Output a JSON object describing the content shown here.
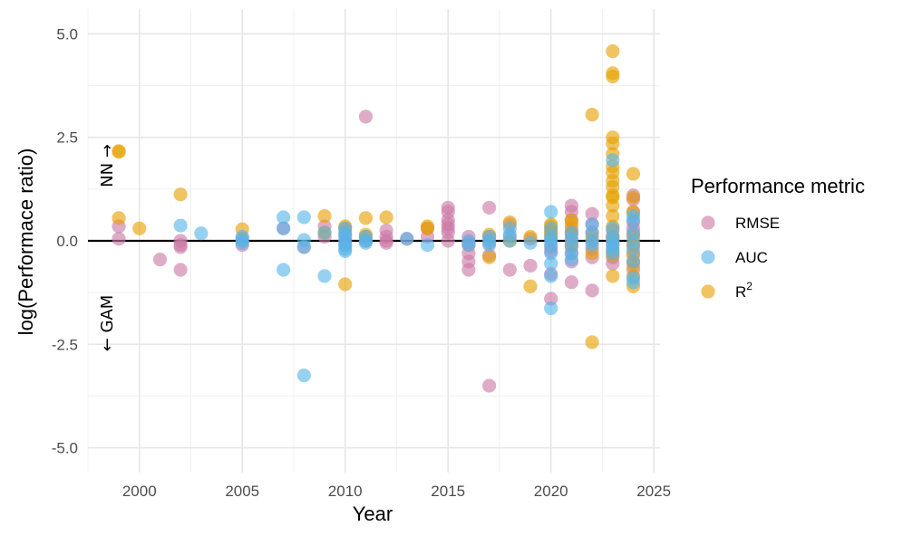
{
  "chart_data": {
    "type": "scatter",
    "xlabel": "Year",
    "ylabel": "log(Performace ratio)",
    "xlim": [
      1997.5,
      2025.3
    ],
    "ylim": [
      -5.6,
      5.6
    ],
    "x_ticks": [
      2000,
      2005,
      2010,
      2015,
      2020,
      2025
    ],
    "y_ticks": [
      5.0,
      2.5,
      0.0,
      -2.5,
      -5.0
    ],
    "y_tick_labels": [
      "5.0",
      "2.5",
      "0.0",
      "-2.5",
      "-5.0"
    ],
    "x_minor_ticks": [
      1997.5,
      2002.5,
      2007.5,
      2012.5,
      2017.5,
      2022.5
    ],
    "y_minor_ticks": [
      3.75,
      1.25,
      -1.25,
      -3.75
    ],
    "grid": true,
    "reference_line_y": 0,
    "annotations": {
      "upper": "NN →",
      "lower": "← GAM"
    },
    "legend": {
      "title": "Performance metric",
      "position": "right",
      "entries": [
        {
          "label": "RMSE",
          "superscript": "",
          "color": "#CC79A7"
        },
        {
          "label": "AUC",
          "superscript": "",
          "color": "#56B4E9"
        },
        {
          "label": "R",
          "superscript": "2",
          "color": "#E69F00"
        }
      ]
    },
    "series": [
      {
        "name": "RMSE",
        "color": "#CC79A7",
        "points": [
          [
            1999,
            0.35
          ],
          [
            1999,
            0.05
          ],
          [
            2001,
            -0.45
          ],
          [
            2002,
            -0.1
          ],
          [
            2002,
            -0.15
          ],
          [
            2002,
            -0.7
          ],
          [
            2002,
            0.0
          ],
          [
            2005,
            -0.1
          ],
          [
            2005,
            0.05
          ],
          [
            2007,
            0.3
          ],
          [
            2008,
            -0.15
          ],
          [
            2009,
            0.35
          ],
          [
            2009,
            0.1
          ],
          [
            2010,
            0.3
          ],
          [
            2010,
            0.15
          ],
          [
            2010,
            -0.1
          ],
          [
            2010,
            0.0
          ],
          [
            2011,
            3.0
          ],
          [
            2011,
            0.1
          ],
          [
            2011,
            0.0
          ],
          [
            2012,
            0.25
          ],
          [
            2012,
            0.1
          ],
          [
            2012,
            0.0
          ],
          [
            2012,
            -0.05
          ],
          [
            2013,
            0.05
          ],
          [
            2014,
            0.3
          ],
          [
            2014,
            0.1
          ],
          [
            2015,
            0.8
          ],
          [
            2015,
            0.7
          ],
          [
            2015,
            0.5
          ],
          [
            2015,
            0.4
          ],
          [
            2015,
            0.3
          ],
          [
            2015,
            0.2
          ],
          [
            2015,
            0.0
          ],
          [
            2016,
            0.1
          ],
          [
            2016,
            -0.05
          ],
          [
            2016,
            -0.1
          ],
          [
            2016,
            -0.3
          ],
          [
            2016,
            -0.5
          ],
          [
            2016,
            -0.7
          ],
          [
            2017,
            0.8
          ],
          [
            2017,
            0.1
          ],
          [
            2017,
            -0.05
          ],
          [
            2017,
            -0.35
          ],
          [
            2017,
            -3.5
          ],
          [
            2018,
            0.4
          ],
          [
            2018,
            0.1
          ],
          [
            2018,
            -0.7
          ],
          [
            2019,
            0.05
          ],
          [
            2019,
            -0.6
          ],
          [
            2020,
            0.2
          ],
          [
            2020,
            0.05
          ],
          [
            2020,
            -0.15
          ],
          [
            2020,
            -0.25
          ],
          [
            2020,
            -0.8
          ],
          [
            2020,
            -1.4
          ],
          [
            2021,
            0.85
          ],
          [
            2021,
            0.7
          ],
          [
            2021,
            0.5
          ],
          [
            2021,
            0.3
          ],
          [
            2021,
            0.15
          ],
          [
            2021,
            0.0
          ],
          [
            2021,
            -0.15
          ],
          [
            2021,
            -0.3
          ],
          [
            2021,
            -0.5
          ],
          [
            2021,
            -1.0
          ],
          [
            2022,
            0.65
          ],
          [
            2022,
            0.4
          ],
          [
            2022,
            0.2
          ],
          [
            2022,
            0.0
          ],
          [
            2022,
            -0.2
          ],
          [
            2022,
            -0.4
          ],
          [
            2022,
            -1.2
          ],
          [
            2023,
            0.25
          ],
          [
            2023,
            0.1
          ],
          [
            2023,
            0.0
          ],
          [
            2023,
            -0.1
          ],
          [
            2023,
            -0.25
          ],
          [
            2023,
            -0.4
          ],
          [
            2023,
            -0.55
          ],
          [
            2024,
            1.1
          ],
          [
            2024,
            1.0
          ],
          [
            2024,
            0.7
          ],
          [
            2024,
            0.45
          ],
          [
            2024,
            0.3
          ],
          [
            2024,
            0.15
          ],
          [
            2024,
            -0.1
          ],
          [
            2024,
            -0.3
          ],
          [
            2024,
            -0.5
          ],
          [
            2024,
            -0.7
          ]
        ]
      },
      {
        "name": "AUC",
        "color": "#56B4E9",
        "points": [
          [
            2002,
            0.37
          ],
          [
            2003,
            0.18
          ],
          [
            2005,
            0.1
          ],
          [
            2005,
            0.0
          ],
          [
            2005,
            -0.05
          ],
          [
            2007,
            0.57
          ],
          [
            2007,
            0.3
          ],
          [
            2007,
            -0.7
          ],
          [
            2008,
            0.57
          ],
          [
            2008,
            0.02
          ],
          [
            2008,
            -0.15
          ],
          [
            2008,
            -3.25
          ],
          [
            2009,
            -0.85
          ],
          [
            2009,
            0.2
          ],
          [
            2010,
            0.3
          ],
          [
            2010,
            0.2
          ],
          [
            2010,
            0.1
          ],
          [
            2010,
            0.0
          ],
          [
            2010,
            -0.1
          ],
          [
            2010,
            -0.2
          ],
          [
            2010,
            -0.25
          ],
          [
            2011,
            0.1
          ],
          [
            2011,
            0.0
          ],
          [
            2011,
            -0.05
          ],
          [
            2013,
            0.05
          ],
          [
            2014,
            -0.1
          ],
          [
            2016,
            0.0
          ],
          [
            2016,
            -0.1
          ],
          [
            2017,
            0.1
          ],
          [
            2017,
            0.0
          ],
          [
            2017,
            -0.1
          ],
          [
            2018,
            0.3
          ],
          [
            2018,
            0.15
          ],
          [
            2018,
            0.0
          ],
          [
            2019,
            -0.05
          ],
          [
            2020,
            0.7
          ],
          [
            2020,
            0.3
          ],
          [
            2020,
            0.1
          ],
          [
            2020,
            0.0
          ],
          [
            2020,
            -0.1
          ],
          [
            2020,
            -0.3
          ],
          [
            2020,
            -0.55
          ],
          [
            2020,
            -0.85
          ],
          [
            2020,
            -1.63
          ],
          [
            2021,
            0.2
          ],
          [
            2021,
            0.05
          ],
          [
            2021,
            -0.1
          ],
          [
            2021,
            -0.3
          ],
          [
            2021,
            -0.45
          ],
          [
            2022,
            0.4
          ],
          [
            2022,
            0.2
          ],
          [
            2022,
            0.0
          ],
          [
            2022,
            -0.1
          ],
          [
            2023,
            1.95
          ],
          [
            2023,
            0.3
          ],
          [
            2023,
            0.1
          ],
          [
            2023,
            0.0
          ],
          [
            2023,
            -0.1
          ],
          [
            2023,
            -0.2
          ],
          [
            2023,
            -0.3
          ],
          [
            2024,
            0.6
          ],
          [
            2024,
            0.5
          ],
          [
            2024,
            0.2
          ],
          [
            2024,
            0.0
          ],
          [
            2024,
            -0.2
          ],
          [
            2024,
            -0.5
          ],
          [
            2024,
            -0.9
          ],
          [
            2024,
            -1.0
          ]
        ]
      },
      {
        "name": "R",
        "color": "#E69F00",
        "points": [
          [
            1999,
            2.17
          ],
          [
            1999,
            2.15
          ],
          [
            1999,
            0.55
          ],
          [
            2000,
            0.3
          ],
          [
            2002,
            1.12
          ],
          [
            2005,
            0.28
          ],
          [
            2009,
            0.6
          ],
          [
            2009,
            0.2
          ],
          [
            2010,
            0.35
          ],
          [
            2010,
            -1.05
          ],
          [
            2011,
            0.55
          ],
          [
            2011,
            0.15
          ],
          [
            2012,
            0.57
          ],
          [
            2014,
            0.35
          ],
          [
            2014,
            0.3
          ],
          [
            2017,
            0.15
          ],
          [
            2017,
            -0.4
          ],
          [
            2018,
            0.45
          ],
          [
            2018,
            0.0
          ],
          [
            2019,
            0.1
          ],
          [
            2019,
            -1.1
          ],
          [
            2020,
            0.4
          ],
          [
            2020,
            0.35
          ],
          [
            2020,
            0.25
          ],
          [
            2020,
            0.15
          ],
          [
            2021,
            0.5
          ],
          [
            2021,
            0.4
          ],
          [
            2021,
            0.2
          ],
          [
            2021,
            -0.1
          ],
          [
            2022,
            3.05
          ],
          [
            2022,
            0.1
          ],
          [
            2022,
            -0.3
          ],
          [
            2022,
            -2.45
          ],
          [
            2023,
            4.58
          ],
          [
            2023,
            4.05
          ],
          [
            2023,
            3.97
          ],
          [
            2023,
            2.5
          ],
          [
            2023,
            2.35
          ],
          [
            2023,
            2.1
          ],
          [
            2023,
            1.8
          ],
          [
            2023,
            1.65
          ],
          [
            2023,
            1.45
          ],
          [
            2023,
            1.3
          ],
          [
            2023,
            1.1
          ],
          [
            2023,
            1.05
          ],
          [
            2023,
            0.85
          ],
          [
            2023,
            0.6
          ],
          [
            2023,
            0.35
          ],
          [
            2023,
            0.1
          ],
          [
            2023,
            -0.35
          ],
          [
            2023,
            -0.85
          ],
          [
            2024,
            1.62
          ],
          [
            2024,
            1.05
          ],
          [
            2024,
            0.7
          ],
          [
            2024,
            0.1
          ],
          [
            2024,
            -0.1
          ],
          [
            2024,
            -0.35
          ],
          [
            2024,
            -0.6
          ],
          [
            2024,
            -0.85
          ],
          [
            2024,
            -1.1
          ]
        ]
      }
    ]
  }
}
